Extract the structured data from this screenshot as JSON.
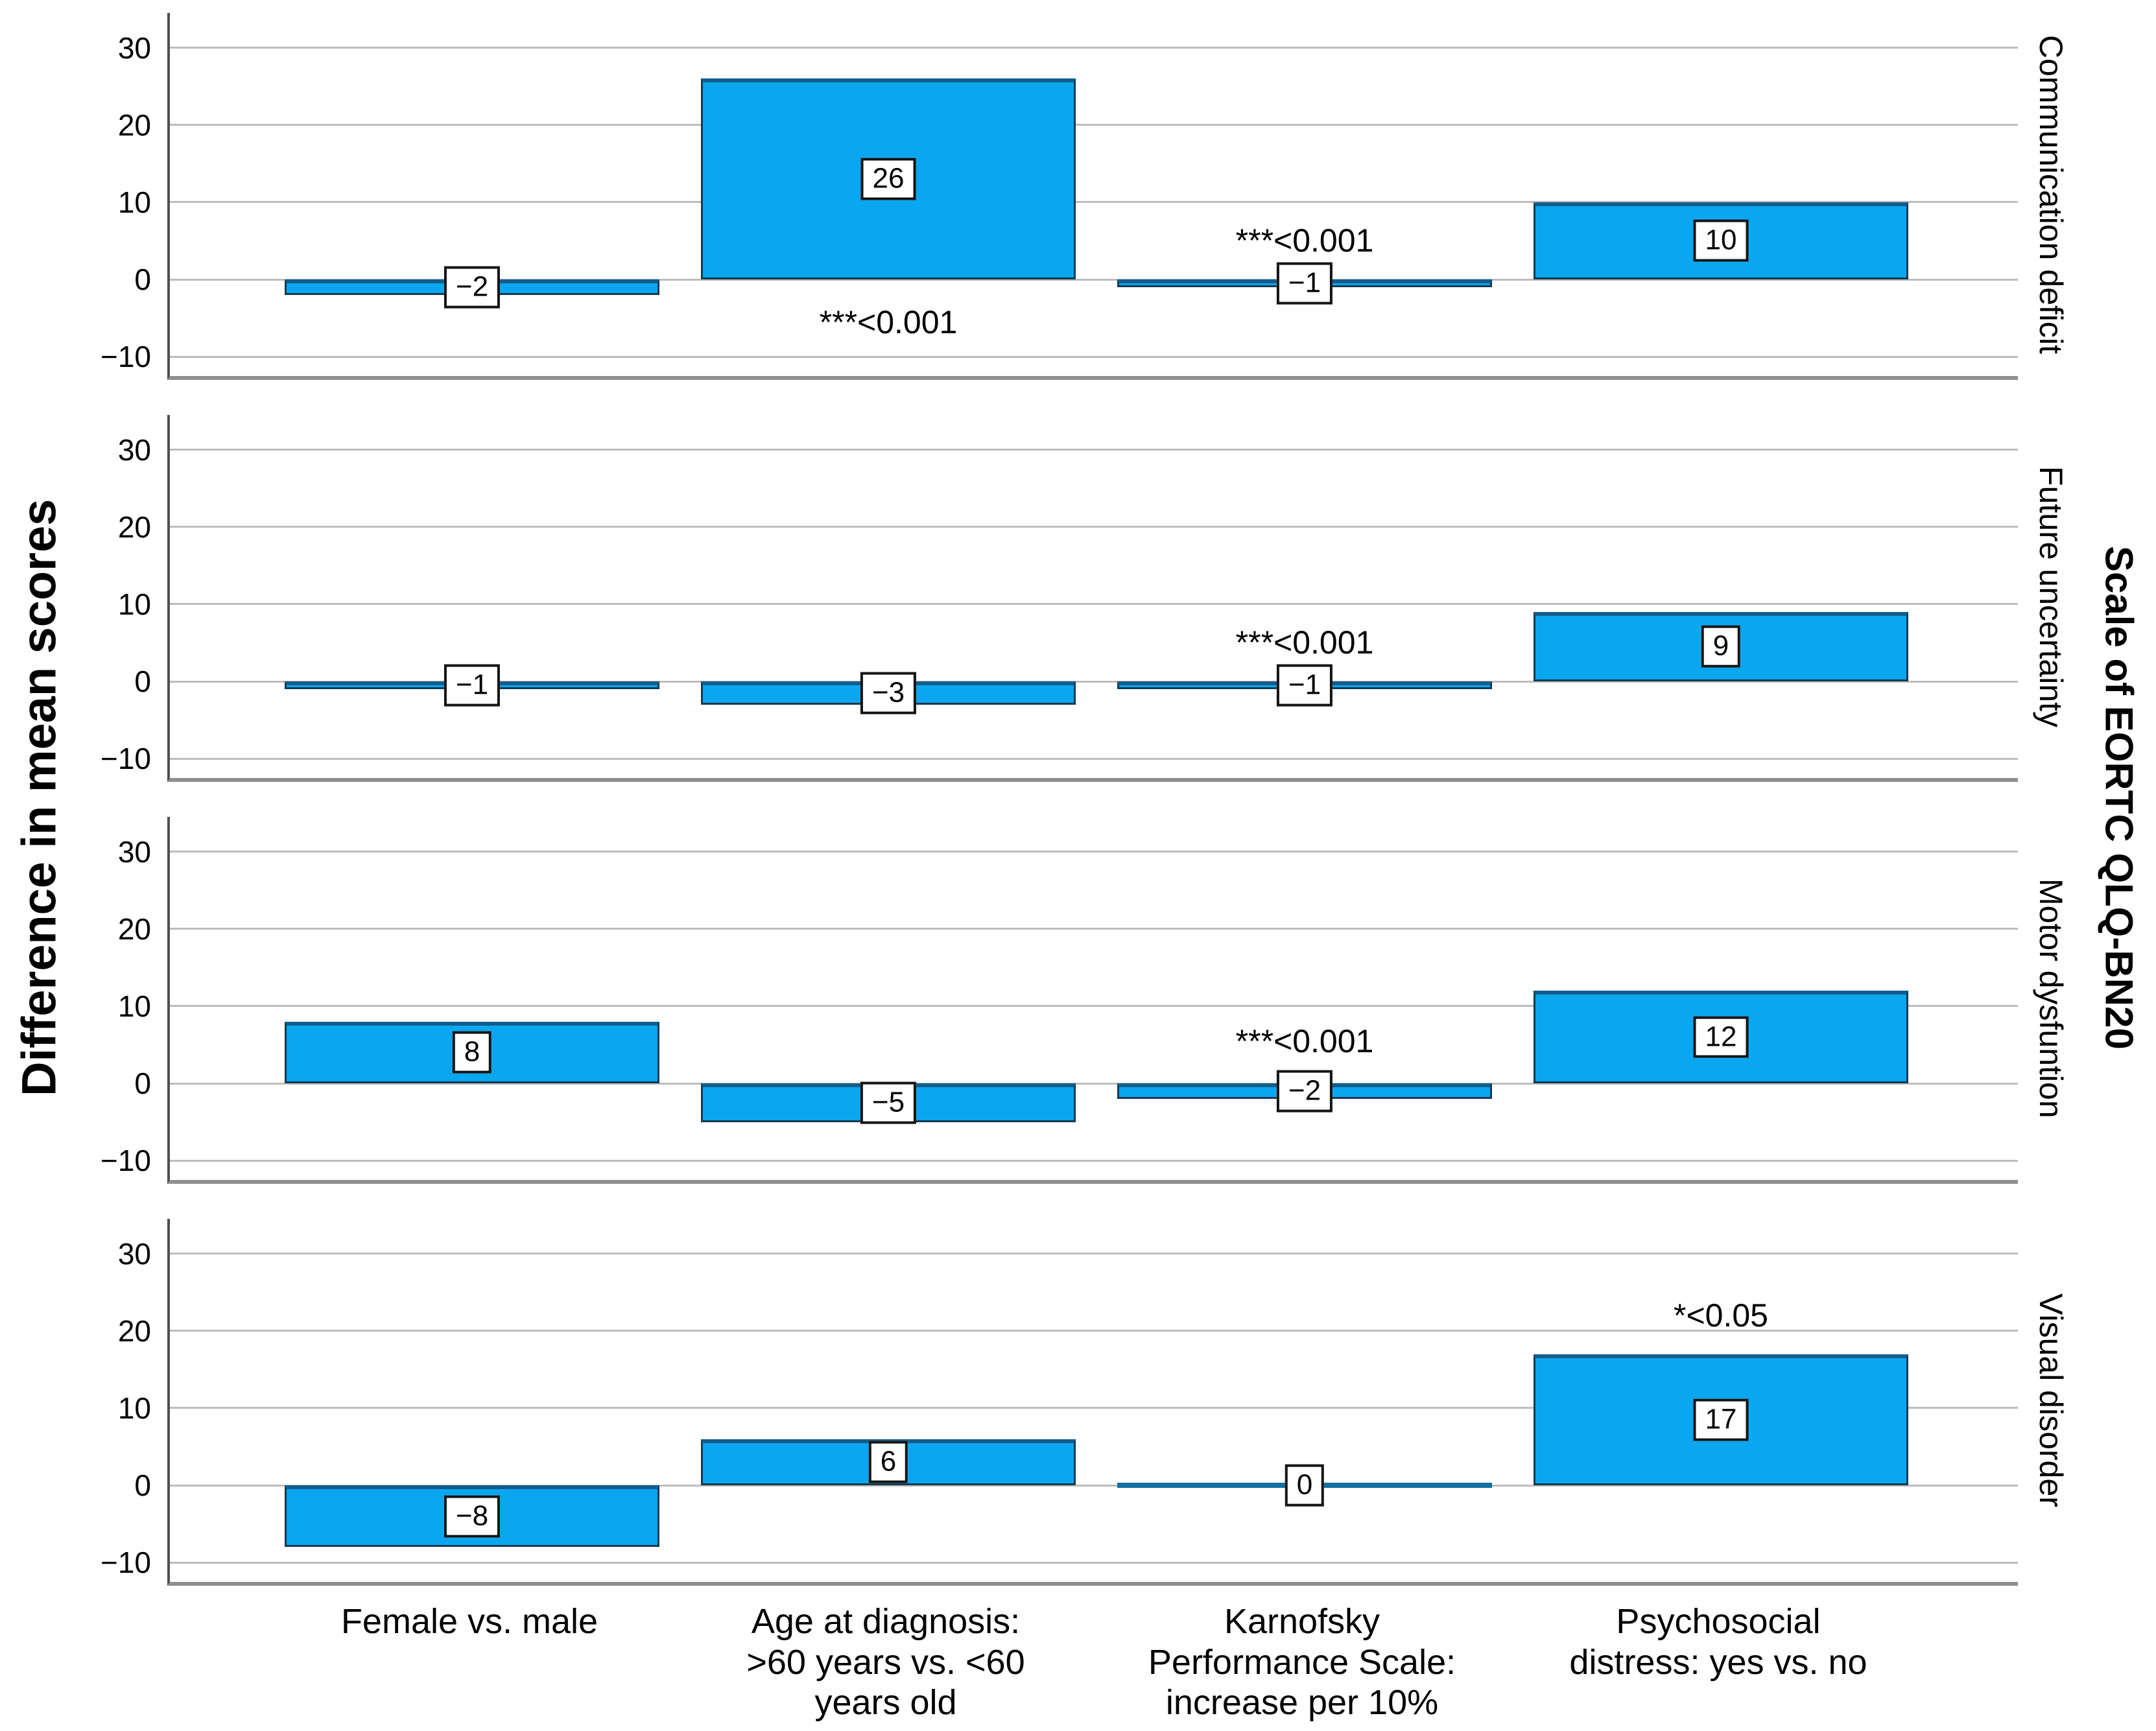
{
  "figure": {
    "background": "#FFFFFF",
    "left_axis_title": "Difference in mean scores",
    "right_axis_title": "Scale of EORTC QLQ-BN20",
    "colors": {
      "bar_fill": "#0AA7F0",
      "bar_border": "#16394E",
      "bar_border_top": "#135D8C",
      "gridline": "#BDBDBD",
      "axis_line": "#4F4F4F",
      "panel_frame": "#8F8F8F",
      "value_box_bg": "#FFFFFF",
      "value_box_border": "#141414",
      "text": "#000000"
    }
  },
  "chart_data": {
    "type": "bar",
    "orientation": "vertical",
    "title": "",
    "xlabel": "",
    "ylabel": "Difference in mean scores",
    "right_label": "Scale of EORTC QLQ-BN20",
    "ylim": [
      -12.5,
      34.5
    ],
    "y_ticks": [
      30,
      20,
      10,
      0,
      -10
    ],
    "grid": true,
    "legend": "none",
    "categories": [
      "Female vs. male",
      "Age at diagnosis: >60 years vs. <60 years old",
      "Karnofsky Performance Scale: increase per 10%",
      "Psychosocial distress: yes vs. no"
    ],
    "category_lines": [
      [
        "Female vs. male"
      ],
      [
        "Age at diagnosis:",
        ">60 years vs. <60",
        "years old"
      ],
      [
        "Karnofsky",
        "Performance Scale:",
        "increase per 10%"
      ],
      [
        "Psychosocial",
        "distress: yes vs. no"
      ]
    ],
    "panels": [
      {
        "label": "Communication deficit",
        "values": [
          -2,
          26,
          -1,
          10
        ],
        "annotations": [
          {
            "bar": 1,
            "text": "***<0.001",
            "position": "below-bar",
            "y": -5.5
          },
          {
            "bar": 2,
            "text": "***<0.001",
            "position": "above-bar",
            "y": 5
          }
        ]
      },
      {
        "label": "Future uncertainty",
        "values": [
          -1,
          -3,
          -1,
          9
        ],
        "annotations": [
          {
            "bar": 2,
            "text": "***<0.001",
            "position": "above-bar",
            "y": 5
          }
        ]
      },
      {
        "label": "Motor dysfuntion",
        "values": [
          8,
          -5,
          -2,
          12
        ],
        "annotations": [
          {
            "bar": 2,
            "text": "***<0.001",
            "position": "above-bar",
            "y": 5.5
          }
        ]
      },
      {
        "label": "Visual disorder",
        "values": [
          -8,
          6,
          0,
          17
        ],
        "annotations": [
          {
            "bar": 3,
            "text": "*<0.05",
            "position": "above-bar",
            "y": 22
          }
        ]
      }
    ]
  }
}
